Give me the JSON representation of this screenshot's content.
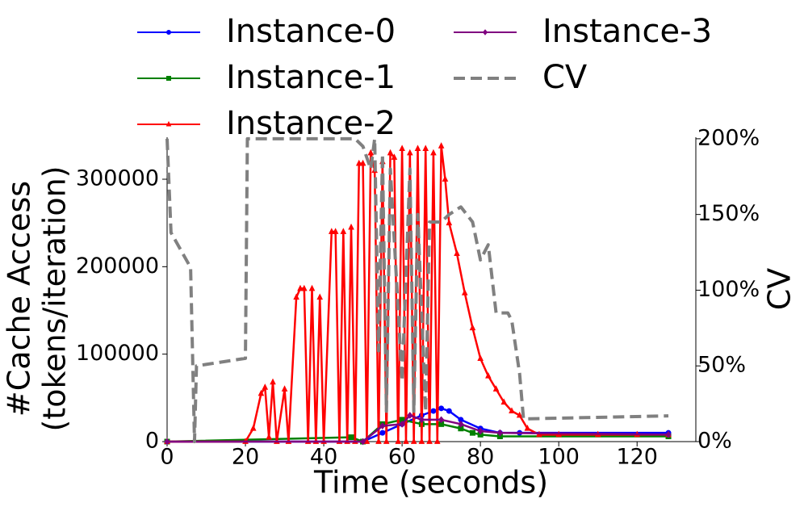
{
  "chart_data": {
    "type": "line",
    "xlabel": "Time (seconds)",
    "ylabel": [
      "#Cache Access",
      "(tokens/iteration)"
    ],
    "y2label": "CV",
    "xlim": [
      0,
      135
    ],
    "xticks": [
      0,
      20,
      40,
      60,
      80,
      100,
      120
    ],
    "ylim": [
      0,
      348000
    ],
    "yticks": [
      0,
      100000,
      200000,
      300000
    ],
    "y2lim": [
      0,
      201
    ],
    "y2ticks": [
      {
        "value": 0,
        "label": "0%"
      },
      {
        "value": 50,
        "label": "50%"
      },
      {
        "value": 100,
        "label": "100%"
      },
      {
        "value": 150,
        "label": "150%"
      },
      {
        "value": 200,
        "label": "200%"
      }
    ],
    "series": [
      {
        "name": "Instance-0",
        "color": "#0000ff",
        "marker": "circle",
        "x": [
          0,
          50,
          55,
          60,
          65,
          68,
          70,
          72,
          75,
          80,
          85,
          90,
          128
        ],
        "values": [
          0,
          0,
          10000,
          20000,
          30000,
          35000,
          38000,
          35000,
          25000,
          15000,
          10000,
          10000,
          10000
        ]
      },
      {
        "name": "Instance-1",
        "color": "#008000",
        "marker": "square",
        "x": [
          0,
          47,
          50,
          55,
          60,
          65,
          70,
          75,
          78,
          80,
          85,
          128
        ],
        "values": [
          0,
          5000,
          0,
          20000,
          25000,
          20000,
          20000,
          15000,
          10000,
          8000,
          6000,
          6000
        ]
      },
      {
        "name": "Instance-2",
        "color": "#ff0000",
        "marker": "triangle",
        "x": [
          0,
          20,
          22,
          24,
          25,
          26,
          27,
          28,
          30,
          31,
          33,
          34,
          35,
          36,
          37,
          38,
          39,
          40,
          42,
          43,
          44,
          45,
          46,
          47,
          48,
          49,
          50,
          51,
          52,
          53,
          54,
          55,
          56,
          57,
          58,
          59,
          60,
          61,
          62,
          63,
          64,
          65,
          66,
          67,
          68,
          69,
          70,
          71,
          72,
          74,
          76,
          78,
          80,
          82,
          84,
          86,
          88,
          90,
          92,
          95,
          100,
          110,
          120,
          128
        ],
        "values": [
          0,
          0,
          15000,
          55000,
          62000,
          5000,
          68000,
          0,
          60000,
          0,
          165000,
          175000,
          175000,
          0,
          175000,
          0,
          165000,
          0,
          240000,
          240000,
          0,
          240000,
          0,
          245000,
          0,
          318000,
          318000,
          0,
          330000,
          310000,
          0,
          320000,
          0,
          330000,
          325000,
          0,
          335000,
          0,
          330000,
          0,
          335000,
          0,
          335000,
          0,
          330000,
          0,
          338000,
          300000,
          250000,
          215000,
          170000,
          130000,
          95000,
          75000,
          60000,
          45000,
          35000,
          30000,
          15000,
          8000,
          8000,
          8000,
          8000,
          8000
        ]
      },
      {
        "name": "Instance-3",
        "color": "#800080",
        "marker": "diamond",
        "x": [
          0,
          50,
          55,
          60,
          62,
          65,
          70,
          75,
          80,
          85,
          128
        ],
        "values": [
          0,
          0,
          18000,
          20000,
          30000,
          25000,
          25000,
          20000,
          12000,
          10000,
          8000
        ]
      },
      {
        "name": "CV",
        "color": "#808080",
        "marker": "none",
        "dash": true,
        "axis": "y2",
        "x": [
          0,
          1,
          6,
          7,
          7.5,
          20,
          20.5,
          48,
          50,
          52,
          53,
          54,
          55,
          56,
          57,
          60,
          62,
          63,
          64,
          66,
          67,
          70,
          72,
          75,
          78,
          80,
          82,
          84,
          87,
          88,
          90,
          91,
          128
        ],
        "values": [
          200,
          138,
          115,
          0,
          50,
          55,
          200,
          200,
          195,
          180,
          200,
          60,
          190,
          20,
          180,
          40,
          180,
          20,
          150,
          20,
          145,
          145,
          150,
          155,
          145,
          120,
          130,
          85,
          85,
          80,
          45,
          15,
          17
        ]
      }
    ]
  }
}
